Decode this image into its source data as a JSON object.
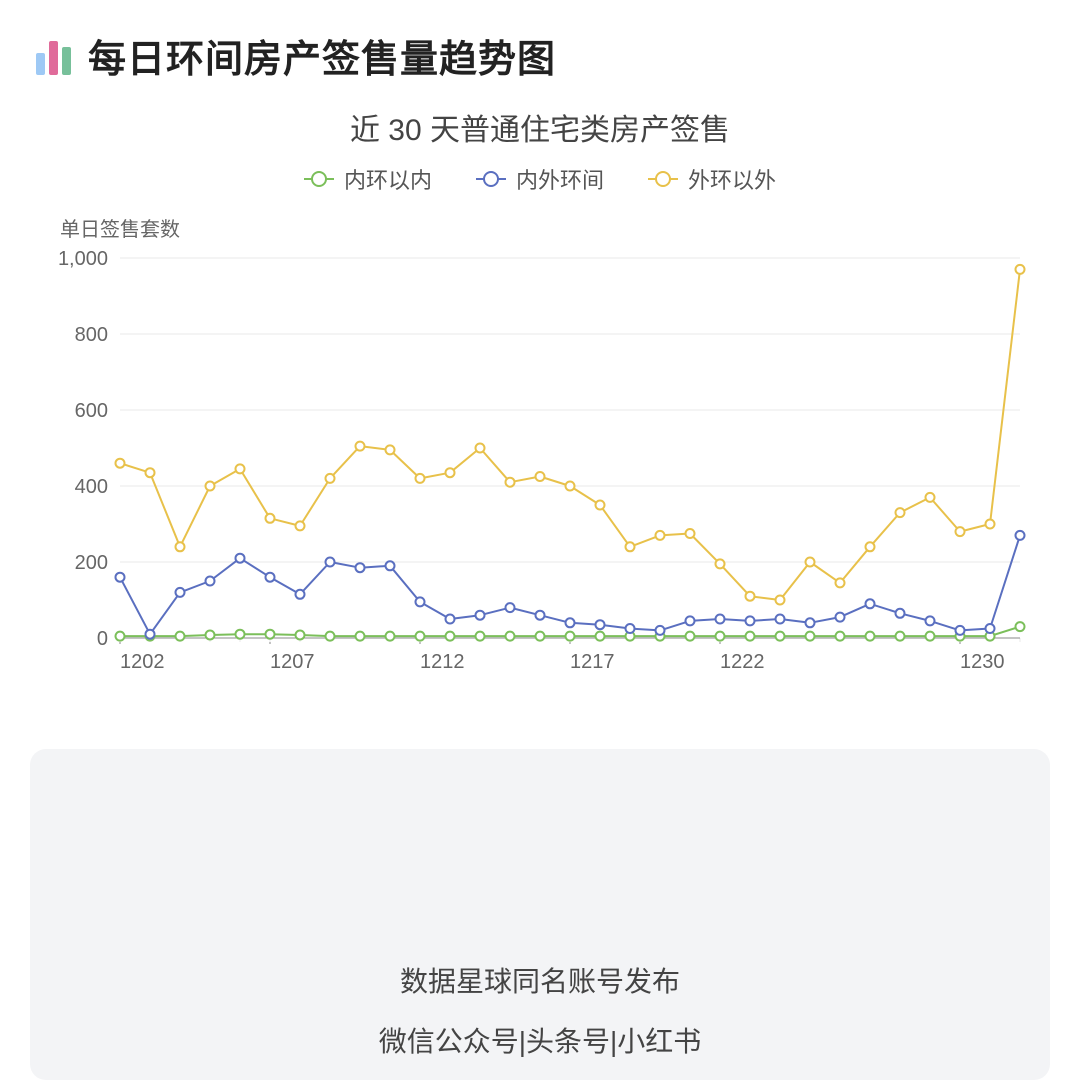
{
  "header": {
    "title": "每日环间房产签售量趋势图",
    "icon_bars": [
      {
        "h": 22,
        "c": "#9ec9f5"
      },
      {
        "h": 34,
        "c": "#e06b9a"
      },
      {
        "h": 28,
        "c": "#77c09a"
      }
    ]
  },
  "subtitle": "近 30 天普通住宅类房产签售",
  "chart": {
    "type": "line",
    "y_title": "单日签售套数",
    "background_color": "#ffffff",
    "grid_color": "#e9e9e9",
    "axis_color": "#888888",
    "tick_font_size": 20,
    "tick_color": "#666666",
    "ylim": [
      0,
      1000
    ],
    "yticks": [
      0,
      200,
      400,
      600,
      800,
      1000
    ],
    "ytick_labels": [
      "0",
      "200",
      "400",
      "600",
      "800",
      "1,000"
    ],
    "x_count": 31,
    "xticks_idx": [
      0,
      5,
      10,
      15,
      20,
      28
    ],
    "xtick_labels": [
      "1202",
      "1207",
      "1212",
      "1217",
      "1222",
      "1230"
    ],
    "line_width": 2,
    "marker_radius": 4.5,
    "marker_fill": "#ffffff",
    "series": [
      {
        "name": "内环以内",
        "color": "#7bbf5a",
        "values": [
          5,
          5,
          5,
          8,
          10,
          10,
          8,
          5,
          5,
          5,
          5,
          5,
          5,
          5,
          5,
          5,
          5,
          5,
          5,
          5,
          5,
          5,
          5,
          5,
          5,
          5,
          5,
          5,
          5,
          5,
          30
        ]
      },
      {
        "name": "内外环间",
        "color": "#5a6fc0",
        "values": [
          160,
          10,
          120,
          150,
          210,
          160,
          115,
          200,
          185,
          190,
          95,
          50,
          60,
          80,
          60,
          40,
          35,
          25,
          20,
          45,
          50,
          45,
          50,
          40,
          55,
          90,
          65,
          45,
          20,
          25,
          270
        ]
      },
      {
        "name": "外环以外",
        "color": "#e8c14a",
        "values": [
          460,
          435,
          240,
          400,
          445,
          315,
          295,
          420,
          505,
          495,
          420,
          435,
          500,
          410,
          425,
          400,
          350,
          240,
          270,
          275,
          195,
          110,
          100,
          200,
          145,
          240,
          330,
          370,
          280,
          300,
          970
        ]
      }
    ]
  },
  "legend_items": [
    {
      "label": "内环以内",
      "color": "#7bbf5a"
    },
    {
      "label": "内外环间",
      "color": "#5a6fc0"
    },
    {
      "label": "外环以外",
      "color": "#e8c14a"
    }
  ],
  "footer": {
    "line1": "数据星球同名账号发布",
    "line2": "微信公众号|头条号|小红书",
    "bg": "#f3f4f6"
  }
}
